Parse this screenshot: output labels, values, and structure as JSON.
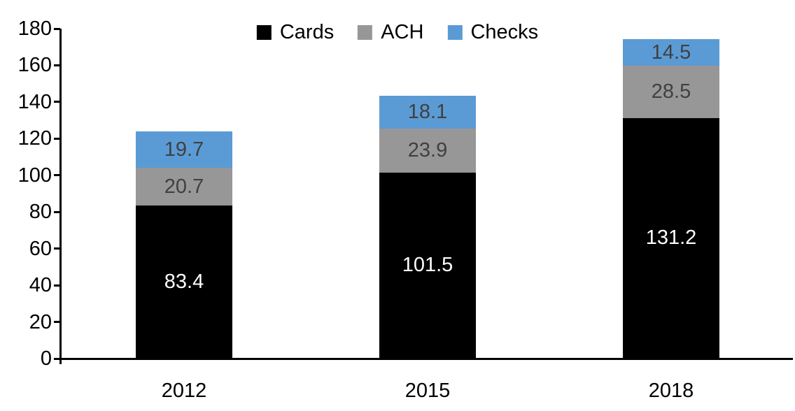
{
  "chart_data": {
    "type": "bar",
    "stacked": true,
    "title": "",
    "xlabel": "",
    "ylabel": "",
    "categories": [
      "2012",
      "2015",
      "2018"
    ],
    "series": [
      {
        "name": "Cards",
        "values": [
          83.4,
          101.5,
          131.2
        ],
        "color": "#000000",
        "label_color": "#ffffff"
      },
      {
        "name": "ACH",
        "values": [
          20.7,
          23.9,
          28.5
        ],
        "color": "#979797",
        "label_color": "#404040"
      },
      {
        "name": "Checks",
        "values": [
          19.7,
          18.1,
          14.5
        ],
        "color": "#5b9bd5",
        "label_color": "#404040"
      }
    ],
    "totals": [
      123.8,
      143.5,
      174.2
    ],
    "ylim": [
      0,
      180
    ],
    "yticks": [
      0,
      20,
      40,
      60,
      80,
      100,
      120,
      140,
      160,
      180
    ],
    "grid": false,
    "legend_position": "top-center",
    "legend_order": [
      "Cards",
      "ACH",
      "Checks"
    ],
    "axis_color": "#000000",
    "background_color": "#ffffff"
  }
}
